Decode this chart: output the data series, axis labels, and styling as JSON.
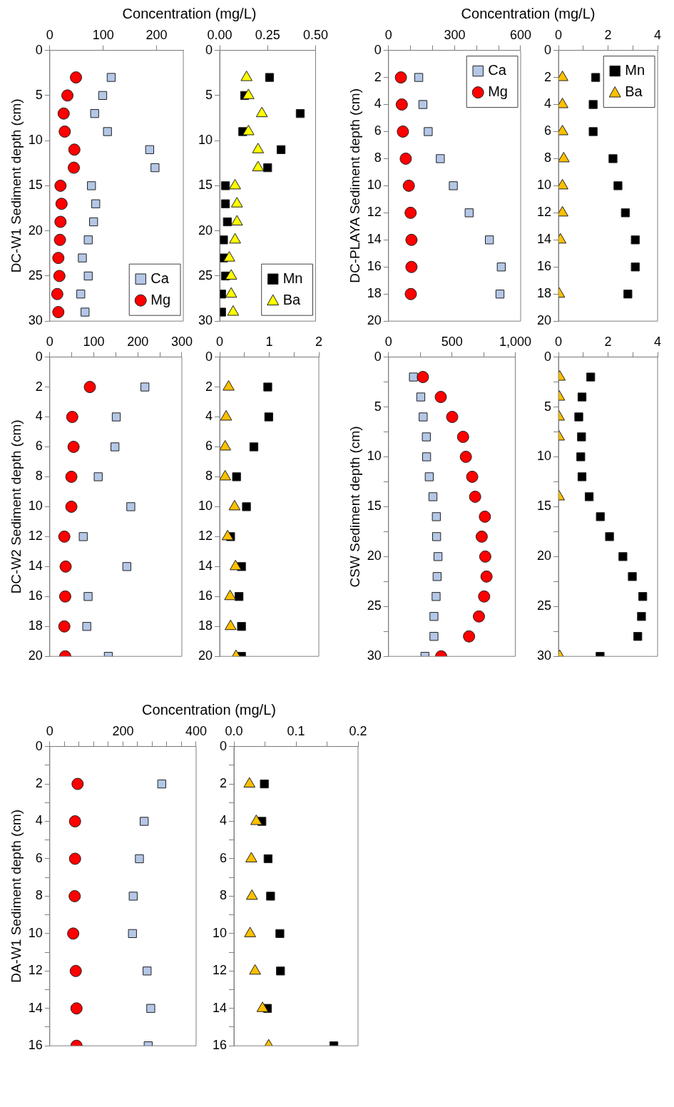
{
  "chart_data": [
    {
      "type": "scatter",
      "xlabel": "Concentration (mg/L)",
      "ylabel": "DC-W1 Sediment depth (cm)",
      "xlim": [
        0,
        250
      ],
      "xticks": [
        0,
        100,
        200
      ],
      "ylim": [
        30,
        0
      ],
      "yticks": [
        0,
        5,
        10,
        15,
        20,
        25,
        30
      ],
      "legend": "bottom right",
      "series": [
        {
          "name": "Ca",
          "color": "#b4c7e7",
          "marker": "square",
          "x": [
            115,
            99,
            84,
            108,
            187,
            197,
            78,
            86,
            82,
            72,
            61,
            72,
            58,
            66
          ],
          "values": [
            3,
            5,
            7,
            9,
            11,
            13,
            15,
            17,
            19,
            21,
            23,
            25,
            27,
            29
          ]
        },
        {
          "name": "Mg",
          "color": "#ff0000",
          "marker": "circle",
          "x": [
            49,
            33,
            26,
            28,
            46,
            45,
            20,
            22,
            20,
            19,
            16,
            18,
            14,
            16
          ],
          "values": [
            3,
            5,
            7,
            9,
            11,
            13,
            15,
            17,
            19,
            21,
            23,
            25,
            27,
            29
          ]
        }
      ]
    },
    {
      "type": "scatter",
      "xlim": [
        0,
        0.5
      ],
      "xticks": [
        {
          "value": 0,
          "label": "0.00"
        },
        {
          "value": 0.25,
          "label": "0.25"
        },
        {
          "value": 0.5,
          "label": "0.50"
        }
      ],
      "ylim": [
        30,
        0
      ],
      "yticks": [
        0,
        5,
        10,
        15,
        20,
        25,
        30
      ],
      "legend": "bottom right",
      "series": [
        {
          "name": "Mn",
          "color": "#000000",
          "marker": "square",
          "x": [
            0.26,
            0.13,
            0.42,
            0.12,
            0.32,
            0.25,
            0.03,
            0.03,
            0.04,
            0.02,
            0.02,
            0.03,
            0.01,
            0.01
          ],
          "values": [
            3,
            5,
            7,
            9,
            11,
            13,
            15,
            17,
            19,
            21,
            23,
            25,
            27,
            29
          ]
        },
        {
          "name": "Ba",
          "color": "#ffff00",
          "marker": "triangle",
          "x": [
            0.14,
            0.15,
            0.22,
            0.15,
            0.2,
            0.2,
            0.08,
            0.09,
            0.09,
            0.08,
            0.05,
            0.06,
            0.06,
            0.07
          ],
          "values": [
            3,
            5,
            7,
            9,
            11,
            13,
            15,
            17,
            19,
            21,
            23,
            25,
            27,
            29
          ]
        }
      ]
    },
    {
      "type": "scatter",
      "xlabel": "Concentration (mg/L)",
      "ylabel": "DC-PLAYA Sediment depth (cm)",
      "xlim": [
        0,
        600
      ],
      "xticks": [
        0,
        {
          "value": 100,
          "label": null
        },
        {
          "value": 200,
          "label": null
        },
        300,
        {
          "value": 400,
          "label": null
        },
        {
          "value": 500,
          "label": null
        },
        600
      ],
      "ylim": [
        20,
        0
      ],
      "yticks": [
        0,
        2,
        4,
        6,
        8,
        10,
        12,
        14,
        16,
        18,
        20
      ],
      "legend": "top right",
      "series": [
        {
          "name": "Ca",
          "color": "#b4c7e7",
          "marker": "square",
          "x": [
            137,
            156,
            180,
            235,
            294,
            366,
            458,
            512,
            506
          ],
          "values": [
            2,
            4,
            6,
            8,
            10,
            12,
            14,
            16,
            18
          ]
        },
        {
          "name": "Mg",
          "color": "#ff0000",
          "marker": "circle",
          "x": [
            56,
            60,
            65,
            78,
            92,
            100,
            104,
            104,
            101
          ],
          "values": [
            2,
            4,
            6,
            8,
            10,
            12,
            14,
            16,
            18
          ]
        }
      ]
    },
    {
      "type": "scatter",
      "xlim": [
        0,
        4
      ],
      "xticks": [
        0,
        {
          "value": 1,
          "label": null
        },
        2,
        {
          "value": 3,
          "label": null
        },
        4
      ],
      "ylim": [
        20,
        0
      ],
      "yticks": [
        0,
        2,
        4,
        6,
        8,
        10,
        12,
        14,
        16,
        18,
        20
      ],
      "legend": "top right",
      "series": [
        {
          "name": "Mn",
          "color": "#000000",
          "marker": "square",
          "x": [
            1.5,
            1.4,
            1.4,
            2.2,
            2.4,
            2.7,
            3.1,
            3.1,
            2.8
          ],
          "values": [
            2,
            4,
            6,
            8,
            10,
            12,
            14,
            16,
            18
          ]
        },
        {
          "name": "Ba",
          "color": "#ffc000",
          "marker": "triangle",
          "x": [
            0.16,
            0.16,
            0.16,
            0.21,
            0.16,
            0.16,
            0.08,
            0.03
          ],
          "values": [
            2,
            4,
            6,
            8,
            10,
            12,
            14,
            18
          ]
        }
      ]
    },
    {
      "type": "scatter",
      "ylabel": "DC-W2 Sediment depth (cm)",
      "xlim": [
        0,
        300
      ],
      "xticks": [
        0,
        {
          "value": 50,
          "label": null
        },
        100,
        {
          "value": 150,
          "label": null
        },
        200,
        {
          "value": 250,
          "label": null
        },
        300
      ],
      "ylim": [
        20,
        0
      ],
      "yticks": [
        0,
        2,
        4,
        6,
        8,
        10,
        12,
        14,
        16,
        18,
        20
      ],
      "series": [
        {
          "color": "#b4c7e7",
          "marker": "square",
          "x": [
            216,
            151,
            148,
            110,
            184,
            76,
            175,
            87,
            84,
            133
          ],
          "values": [
            2,
            4,
            6,
            8,
            10,
            12,
            14,
            16,
            18,
            20
          ]
        },
        {
          "color": "#ff0000",
          "marker": "circle",
          "x": [
            91,
            51,
            54,
            49,
            49,
            33,
            36,
            35,
            33,
            35
          ],
          "values": [
            2,
            4,
            6,
            8,
            10,
            12,
            14,
            16,
            18,
            20
          ]
        }
      ]
    },
    {
      "type": "scatter",
      "xlim": [
        0,
        2
      ],
      "xticks": [
        0,
        {
          "value": 0.5,
          "label": null
        },
        1,
        {
          "value": 1.5,
          "label": null
        },
        2
      ],
      "ylim": [
        20,
        0
      ],
      "yticks": [
        0,
        2,
        4,
        6,
        8,
        10,
        12,
        14,
        16,
        18,
        20
      ],
      "series": [
        {
          "color": "#000000",
          "marker": "square",
          "x": [
            0.97,
            0.99,
            0.69,
            0.34,
            0.54,
            0.22,
            0.44,
            0.39,
            0.44,
            0.44
          ],
          "values": [
            2,
            4,
            6,
            8,
            10,
            12,
            14,
            16,
            18,
            20
          ]
        },
        {
          "color": "#ffc000",
          "marker": "triangle",
          "x": [
            0.18,
            0.13,
            0.11,
            0.11,
            0.3,
            0.16,
            0.32,
            0.21,
            0.22,
            0.33
          ],
          "values": [
            2,
            4,
            6,
            8,
            10,
            12,
            14,
            16,
            18,
            20
          ]
        }
      ]
    },
    {
      "type": "scatter",
      "ylabel": "CSW Sediment depth (cm)",
      "xlim": [
        0,
        1000
      ],
      "xticks": [
        0,
        {
          "value": 250,
          "label": null
        },
        500,
        {
          "value": 750,
          "label": null
        },
        {
          "value": 1000,
          "label": "1,000"
        }
      ],
      "ylim": [
        30,
        0
      ],
      "yticks": [
        0,
        {
          "value": 2.5,
          "label": null
        },
        5,
        {
          "value": 7.5,
          "label": null
        },
        10,
        {
          "value": 12.5,
          "label": null
        },
        15,
        {
          "value": 17.5,
          "label": null
        },
        20,
        {
          "value": 22.5,
          "label": null
        },
        25,
        {
          "value": 27.5,
          "label": null
        },
        30
      ],
      "series": [
        {
          "color": "#b4c7e7",
          "marker": "square",
          "x": [
            196,
            254,
            273,
            298,
            300,
            321,
            350,
            377,
            379,
            390,
            383,
            375,
            358,
            358,
            287
          ],
          "values": [
            2,
            4,
            6,
            8,
            10,
            12,
            14,
            16,
            18,
            20,
            22,
            24,
            26,
            28,
            30
          ]
        },
        {
          "color": "#ff0000",
          "marker": "circle",
          "x": [
            271,
            412,
            502,
            588,
            610,
            660,
            683,
            760,
            735,
            763,
            773,
            754,
            713,
            635,
            415
          ],
          "values": [
            2,
            4,
            6,
            8,
            10,
            12,
            14,
            16,
            18,
            20,
            22,
            24,
            26,
            28,
            30
          ]
        }
      ]
    },
    {
      "type": "scatter",
      "xlim": [
        0,
        4
      ],
      "xticks": [
        0,
        {
          "value": 1,
          "label": null
        },
        2,
        {
          "value": 3,
          "label": null
        },
        4
      ],
      "ylim": [
        30,
        0
      ],
      "yticks": [
        0,
        {
          "value": 2.5,
          "label": null
        },
        5,
        {
          "value": 7.5,
          "label": null
        },
        10,
        {
          "value": 12.5,
          "label": null
        },
        15,
        {
          "value": 17.5,
          "label": null
        },
        20,
        {
          "value": 22.5,
          "label": null
        },
        25,
        {
          "value": 27.5,
          "label": null
        },
        30
      ],
      "series": [
        {
          "color": "#000000",
          "marker": "square",
          "x": [
            1.3,
            0.95,
            0.82,
            0.93,
            0.9,
            0.95,
            1.24,
            1.69,
            2.06,
            2.6,
            2.98,
            3.4,
            3.35,
            3.2,
            1.68
          ],
          "values": [
            2,
            4,
            6,
            8,
            10,
            12,
            14,
            16,
            18,
            20,
            22,
            24,
            26,
            28,
            30
          ]
        },
        {
          "color": "#ffc000",
          "marker": "triangle",
          "x": [
            0.05,
            0.03,
            0.02,
            0.02,
            0.02,
            0.05
          ],
          "values": [
            2,
            4,
            6,
            8,
            14,
            30
          ]
        }
      ]
    },
    {
      "type": "scatter",
      "xlabel": "Concentration (mg/L)",
      "ylabel": "DA-W1 Sediment depth (cm)",
      "xlim": [
        0,
        400
      ],
      "xticks": [
        0,
        {
          "value": 40,
          "label": null
        },
        {
          "value": 80,
          "label": null
        },
        {
          "value": 120,
          "label": null
        },
        {
          "value": 160,
          "label": null
        },
        200,
        {
          "value": 240,
          "label": null
        },
        {
          "value": 280,
          "label": null
        },
        {
          "value": 320,
          "label": null
        },
        {
          "value": 360,
          "label": null
        },
        400
      ],
      "ylim": [
        16,
        0
      ],
      "yticks": [
        0,
        {
          "value": 1,
          "label": null
        },
        2,
        {
          "value": 3,
          "label": null
        },
        4,
        {
          "value": 5,
          "label": null
        },
        6,
        {
          "value": 7,
          "label": null
        },
        8,
        {
          "value": 9,
          "label": null
        },
        10,
        {
          "value": 11,
          "label": null
        },
        12,
        {
          "value": 13,
          "label": null
        },
        14,
        {
          "value": 15,
          "label": null
        },
        16
      ],
      "series": [
        {
          "color": "#b4c7e7",
          "marker": "square",
          "x": [
            306,
            258,
            245,
            228,
            226,
            266,
            276,
            269
          ],
          "values": [
            2,
            4,
            6,
            8,
            10,
            12,
            14,
            16
          ]
        },
        {
          "color": "#ff0000",
          "marker": "circle",
          "x": [
            76,
            69,
            69,
            68,
            64,
            71,
            73,
            73
          ],
          "values": [
            2,
            4,
            6,
            8,
            10,
            12,
            14,
            16
          ]
        }
      ]
    },
    {
      "type": "scatter",
      "xlim": [
        0,
        0.2
      ],
      "xticks": [
        {
          "value": 0,
          "label": "0.0"
        },
        {
          "value": 0.05,
          "label": null
        },
        {
          "value": 0.1,
          "label": "0.1"
        },
        {
          "value": 0.15,
          "label": null
        },
        {
          "value": 0.2,
          "label": "0.2"
        }
      ],
      "ylim": [
        16,
        0
      ],
      "yticks": [
        0,
        {
          "value": 1,
          "label": null
        },
        2,
        {
          "value": 3,
          "label": null
        },
        4,
        {
          "value": 5,
          "label": null
        },
        6,
        {
          "value": 7,
          "label": null
        },
        8,
        {
          "value": 9,
          "label": null
        },
        10,
        {
          "value": 11,
          "label": null
        },
        12,
        {
          "value": 13,
          "label": null
        },
        14,
        {
          "value": 15,
          "label": null
        },
        16
      ],
      "series": [
        {
          "color": "#000000",
          "marker": "square",
          "x": [
            0.049,
            0.045,
            0.055,
            0.059,
            0.074,
            0.075,
            0.054,
            0.161
          ],
          "values": [
            2,
            4,
            6,
            8,
            10,
            12,
            14,
            16
          ]
        },
        {
          "color": "#ffc000",
          "marker": "triangle",
          "x": [
            0.025,
            0.036,
            0.028,
            0.029,
            0.026,
            0.034,
            0.046,
            0.056
          ],
          "values": [
            2,
            4,
            6,
            8,
            10,
            12,
            14,
            16
          ]
        }
      ]
    }
  ]
}
